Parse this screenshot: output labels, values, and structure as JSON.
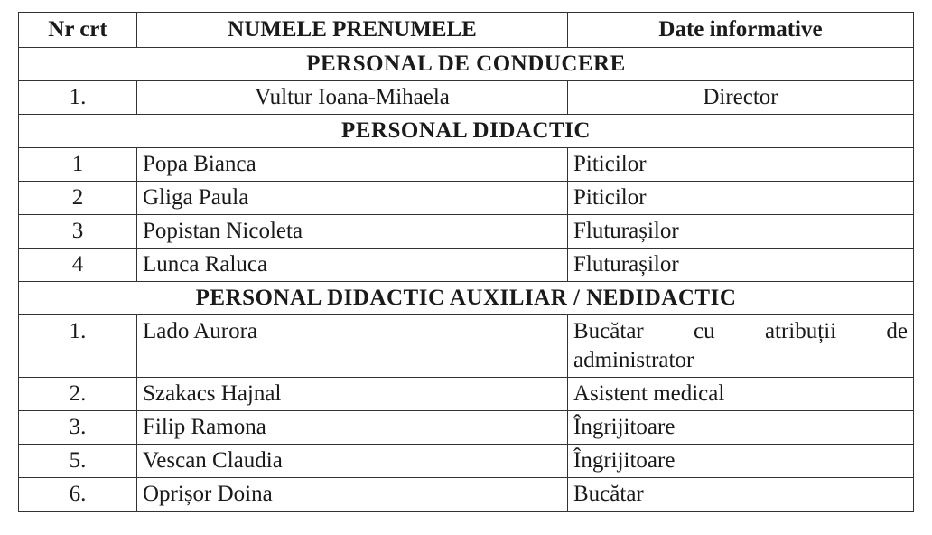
{
  "headers": [
    "Nr crt",
    "NUMELE PRENUMELE",
    "Date informative"
  ],
  "sections": [
    {
      "title": "PERSONAL DE CONDUCERE",
      "rows": [
        {
          "nr": "1.",
          "name": "Vultur Ioana-Mihaela",
          "info": "Director"
        }
      ]
    },
    {
      "title": "PERSONAL DIDACTIC",
      "rows": [
        {
          "nr": "1",
          "name": "Popa Bianca",
          "info": "Piticilor"
        },
        {
          "nr": "2",
          "name": "Gliga Paula",
          "info": "Piticilor"
        },
        {
          "nr": "3",
          "name": "Popistan Nicoleta",
          "info": "Fluturașilor"
        },
        {
          "nr": "4",
          "name": "Lunca Raluca",
          "info": "Fluturașilor"
        }
      ]
    },
    {
      "title": "PERSONAL DIDACTIC AUXILIAR / NEDIDACTIC",
      "rows": [
        {
          "nr": "1.",
          "name": "Lado Aurora",
          "info": "Bucătar cu atribuții de",
          "info2": "administrator"
        },
        {
          "nr": "2.",
          "name": "Szakacs Hajnal",
          "info": "Asistent medical"
        },
        {
          "nr": "3.",
          "name": "Filip Ramona",
          "info": "Îngrijitoare"
        },
        {
          "nr": "5.",
          "name": "Vescan Claudia",
          "info": "Îngrijitoare"
        },
        {
          "nr": "6.",
          "name": "Oprișor Doina",
          "info": "Bucătar"
        }
      ]
    }
  ]
}
